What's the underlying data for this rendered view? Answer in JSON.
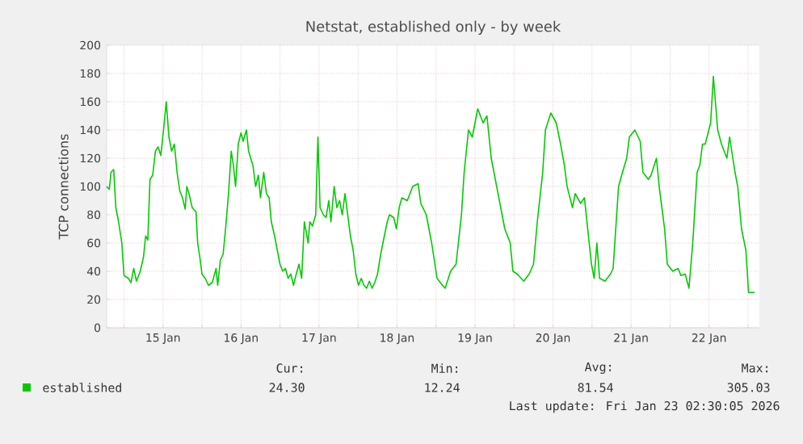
{
  "chart_data": {
    "type": "line",
    "title": "Netstat, established only - by week",
    "ylabel": "TCP connections",
    "xlim": [
      "2026-01-14T18:40",
      "2026-01-23T03:30"
    ],
    "xticks": [
      {
        "value": "2026-01-15T00:00",
        "label": null
      },
      {
        "value": "2026-01-15T12:00",
        "label": "15 Jan"
      },
      {
        "value": "2026-01-16T00:00",
        "label": null
      },
      {
        "value": "2026-01-16T12:00",
        "label": "16 Jan"
      },
      {
        "value": "2026-01-17T00:00",
        "label": null
      },
      {
        "value": "2026-01-17T12:00",
        "label": "17 Jan"
      },
      {
        "value": "2026-01-18T00:00",
        "label": null
      },
      {
        "value": "2026-01-18T12:00",
        "label": "18 Jan"
      },
      {
        "value": "2026-01-19T00:00",
        "label": null
      },
      {
        "value": "2026-01-19T12:00",
        "label": "19 Jan"
      },
      {
        "value": "2026-01-20T00:00",
        "label": null
      },
      {
        "value": "2026-01-20T12:00",
        "label": "20 Jan"
      },
      {
        "value": "2026-01-21T00:00",
        "label": null
      },
      {
        "value": "2026-01-21T12:00",
        "label": "21 Jan"
      },
      {
        "value": "2026-01-22T00:00",
        "label": null
      },
      {
        "value": "2026-01-22T12:00",
        "label": "22 Jan"
      },
      {
        "value": "2026-01-23T00:00",
        "label": null
      }
    ],
    "ylim": [
      0,
      200
    ],
    "yticks": [
      0,
      20,
      40,
      60,
      80,
      100,
      120,
      140,
      160,
      180,
      200
    ],
    "grid": true,
    "legend": "bottom",
    "series": [
      {
        "name": "established",
        "color": "#00cc00",
        "x": [
          "2026-01-14T18:40",
          "2026-01-14T19:30",
          "2026-01-14T20:00",
          "2026-01-14T20:50",
          "2026-01-14T21:30",
          "2026-01-14T22:20",
          "2026-01-14T23:20",
          "2026-01-15T00:00",
          "2026-01-15T01:20",
          "2026-01-15T02:10",
          "2026-01-15T03:00",
          "2026-01-15T03:50",
          "2026-01-15T05:00",
          "2026-01-15T06:00",
          "2026-01-15T06:40",
          "2026-01-15T07:20",
          "2026-01-15T08:00",
          "2026-01-15T08:50",
          "2026-01-15T09:40",
          "2026-01-15T10:30",
          "2026-01-15T11:20",
          "2026-01-15T12:10",
          "2026-01-15T13:00",
          "2026-01-15T13:50",
          "2026-01-15T14:40",
          "2026-01-15T15:30",
          "2026-01-15T16:20",
          "2026-01-15T17:10",
          "2026-01-15T18:00",
          "2026-01-15T18:50",
          "2026-01-15T19:20",
          "2026-01-15T20:00",
          "2026-01-15T21:00",
          "2026-01-15T22:10",
          "2026-01-15T22:40",
          "2026-01-15T23:20",
          "2026-01-16T00:00",
          "2026-01-16T01:00",
          "2026-01-16T02:00",
          "2026-01-16T03:10",
          "2026-01-16T04:20",
          "2026-01-16T04:50",
          "2026-01-16T05:40",
          "2026-01-16T06:30",
          "2026-01-16T07:20",
          "2026-01-16T08:10",
          "2026-01-16T09:00",
          "2026-01-16T09:40",
          "2026-01-16T10:20",
          "2026-01-16T11:10",
          "2026-01-16T12:00",
          "2026-01-16T12:40",
          "2026-01-16T13:40",
          "2026-01-16T14:20",
          "2026-01-16T15:00",
          "2026-01-16T15:40",
          "2026-01-16T16:30",
          "2026-01-16T17:20",
          "2026-01-16T18:00",
          "2026-01-16T19:00",
          "2026-01-16T19:50",
          "2026-01-16T20:40",
          "2026-01-16T21:20",
          "2026-01-16T22:20",
          "2026-01-16T23:10",
          "2026-01-17T00:00",
          "2026-01-17T00:50",
          "2026-01-17T01:40",
          "2026-01-17T02:30",
          "2026-01-17T03:20",
          "2026-01-17T04:10",
          "2026-01-17T05:00",
          "2026-01-17T05:50",
          "2026-01-17T06:40",
          "2026-01-17T07:30",
          "2026-01-17T08:40",
          "2026-01-17T09:10",
          "2026-01-17T10:00",
          "2026-01-17T11:00",
          "2026-01-17T11:40",
          "2026-01-17T12:20",
          "2026-01-17T13:20",
          "2026-01-17T14:10",
          "2026-01-17T15:00",
          "2026-01-17T15:40",
          "2026-01-17T16:40",
          "2026-01-17T17:30",
          "2026-01-17T18:20",
          "2026-01-17T19:10",
          "2026-01-17T20:00",
          "2026-01-17T20:50",
          "2026-01-17T21:40",
          "2026-01-17T22:30",
          "2026-01-17T23:20",
          "2026-01-18T00:10",
          "2026-01-18T01:00",
          "2026-01-18T01:50",
          "2026-01-18T02:40",
          "2026-01-18T03:30",
          "2026-01-18T04:20",
          "2026-01-18T05:10",
          "2026-01-18T06:00",
          "2026-01-18T06:50",
          "2026-01-18T07:40",
          "2026-01-18T09:00",
          "2026-01-18T09:40",
          "2026-01-18T11:00",
          "2026-01-18T11:50",
          "2026-01-18T12:40",
          "2026-01-18T13:30",
          "2026-01-18T15:10",
          "2026-01-18T16:50",
          "2026-01-18T18:30",
          "2026-01-18T19:20",
          "2026-01-18T21:00",
          "2026-01-18T22:40",
          "2026-01-19T00:20",
          "2026-01-19T02:00",
          "2026-01-19T02:50",
          "2026-01-19T04:30",
          "2026-01-19T06:10",
          "2026-01-19T07:50",
          "2026-01-19T08:40",
          "2026-01-19T10:00",
          "2026-01-19T11:10",
          "2026-01-19T12:50",
          "2026-01-19T14:30",
          "2026-01-19T15:40",
          "2026-01-19T17:00",
          "2026-01-19T18:40",
          "2026-01-19T20:20",
          "2026-01-19T21:10",
          "2026-01-19T22:50",
          "2026-01-19T23:40",
          "2026-01-20T01:00",
          "2026-01-20T03:00",
          "2026-01-20T04:40",
          "2026-01-20T06:00",
          "2026-01-20T07:10",
          "2026-01-20T08:50",
          "2026-01-20T09:40",
          "2026-01-20T11:20",
          "2026-01-20T13:00",
          "2026-01-20T14:20",
          "2026-01-20T15:30",
          "2026-01-20T16:20",
          "2026-01-20T18:00",
          "2026-01-20T18:50",
          "2026-01-20T20:30",
          "2026-01-20T21:40",
          "2026-01-20T22:40",
          "2026-01-20T23:50",
          "2026-01-21T00:40",
          "2026-01-21T01:30",
          "2026-01-21T02:20",
          "2026-01-21T04:00",
          "2026-01-21T05:40",
          "2026-01-21T06:30",
          "2026-01-21T08:10",
          "2026-01-21T09:00",
          "2026-01-21T10:40",
          "2026-01-21T11:30",
          "2026-01-21T13:10",
          "2026-01-21T14:50",
          "2026-01-21T15:40",
          "2026-01-21T17:20",
          "2026-01-21T18:10",
          "2026-01-21T19:50",
          "2026-01-21T20:40",
          "2026-01-21T22:20",
          "2026-01-21T23:10",
          "2026-01-22T00:50",
          "2026-01-22T02:30",
          "2026-01-22T03:20",
          "2026-01-22T04:40",
          "2026-01-22T05:50",
          "2026-01-22T07:00",
          "2026-01-22T08:20",
          "2026-01-22T09:10",
          "2026-01-22T10:00",
          "2026-01-22T10:50",
          "2026-01-22T12:30",
          "2026-01-22T13:20",
          "2026-01-22T14:40",
          "2026-01-22T15:50",
          "2026-01-22T17:30",
          "2026-01-22T18:20",
          "2026-01-22T20:00",
          "2026-01-22T20:50",
          "2026-01-22T22:00",
          "2026-01-22T23:20",
          "2026-01-23T00:10",
          "2026-01-23T02:00"
        ],
        "values": [
          100,
          98,
          110,
          112,
          85,
          75,
          60,
          37,
          35,
          32,
          42,
          33,
          40,
          50,
          65,
          62,
          105,
          108,
          125,
          128,
          122,
          140,
          160,
          135,
          125,
          130,
          110,
          97,
          92,
          84,
          100,
          95,
          85,
          82,
          60,
          50,
          38,
          35,
          30,
          32,
          42,
          30,
          48,
          52,
          72,
          95,
          125,
          115,
          100,
          130,
          138,
          132,
          140,
          125,
          120,
          115,
          100,
          108,
          92,
          110,
          95,
          92,
          75,
          65,
          55,
          45,
          40,
          42,
          35,
          38,
          30,
          38,
          45,
          35,
          75,
          60,
          75,
          72,
          80,
          135,
          85,
          80,
          78,
          90,
          75,
          100,
          85,
          90,
          80,
          95,
          80,
          65,
          55,
          38,
          30,
          35,
          30,
          28,
          33,
          28,
          32,
          38,
          50,
          60,
          75,
          80,
          78,
          70,
          85,
          92,
          90,
          100,
          102,
          88,
          80,
          60,
          35,
          30,
          28,
          40,
          45,
          80,
          110,
          140,
          135,
          155,
          145,
          150,
          120,
          100,
          80,
          70,
          60,
          40,
          38,
          33,
          38,
          45,
          75,
          110,
          140,
          152,
          145,
          130,
          115,
          100,
          85,
          95,
          88,
          92,
          70,
          45,
          35,
          60,
          35,
          33,
          38,
          42,
          100,
          107,
          120,
          135,
          140,
          132,
          110,
          105,
          108,
          120,
          100,
          70,
          45,
          40,
          42,
          37,
          38,
          28,
          60,
          110,
          115,
          130,
          130,
          145,
          178,
          140,
          130,
          120,
          135,
          110,
          100,
          70,
          55,
          25,
          25
        ]
      }
    ],
    "annotations": [
      "Cur:",
      "24.30",
      "Min:",
      "12.24",
      "Avg:",
      "81.54",
      "Max:",
      "305.03",
      "Last update: Fri Jan 23 02:30:05 2026"
    ]
  }
}
